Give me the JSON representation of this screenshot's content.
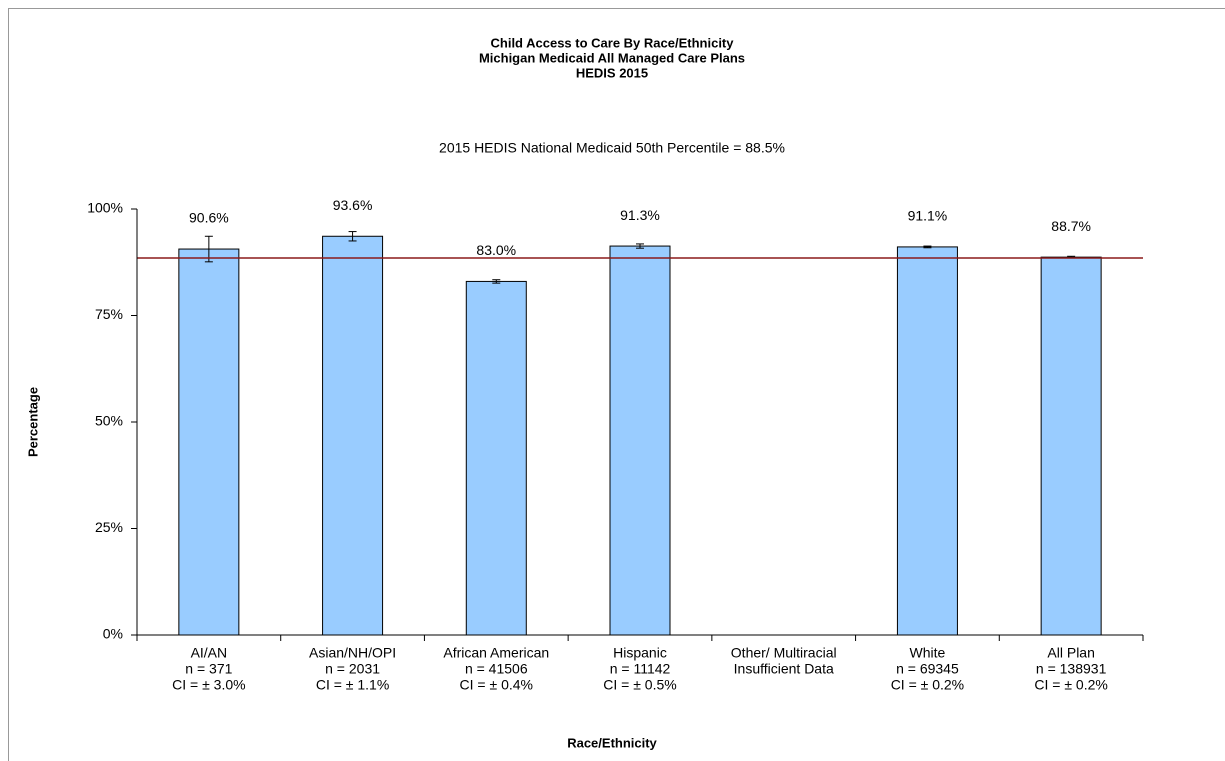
{
  "chart_data": {
    "type": "bar",
    "title": [
      "Child Access to Care By Race/Ethnicity",
      "Michigan Medicaid All Managed Care Plans",
      "HEDIS 2015"
    ],
    "reference_line": {
      "value": 88.5,
      "label": "2015 HEDIS National Medicaid 50th Percentile  = 88.5%",
      "color": "#8b1a1a"
    },
    "xlabel": "Race/Ethnicity",
    "ylabel": "Percentage",
    "categories": [
      [
        "AI/AN",
        "n = 371",
        "CI =  ± 3.0%"
      ],
      [
        "Asian/NH/OPI",
        "n = 2031",
        "CI =  ± 1.1%"
      ],
      [
        "African American",
        "n = 41506",
        "CI =  ± 0.4%"
      ],
      [
        "Hispanic",
        "n = 11142",
        "CI =  ± 0.5%"
      ],
      [
        "Other/ Multiracial",
        "Insufficient Data"
      ],
      [
        "White",
        "n = 69345",
        "CI =  ± 0.2%"
      ],
      [
        "All Plan",
        "n = 138931",
        "CI =  ± 0.2%"
      ]
    ],
    "values": [
      90.6,
      93.6,
      83.0,
      91.3,
      null,
      91.1,
      88.7
    ],
    "value_labels": [
      "90.6%",
      "93.6%",
      "83.0%",
      "91.3%",
      null,
      "91.1%",
      "88.7%"
    ],
    "errors": [
      3.0,
      1.1,
      0.4,
      0.5,
      null,
      0.2,
      0.2
    ],
    "color": "#99ccff",
    "ylim": [
      0,
      100
    ],
    "yticks": [
      {
        "value": 0,
        "label": "0%"
      },
      {
        "value": 25,
        "label": "25%"
      },
      {
        "value": 50,
        "label": "50%"
      },
      {
        "value": 75,
        "label": "75%"
      },
      {
        "value": 100,
        "label": "100%"
      }
    ]
  }
}
